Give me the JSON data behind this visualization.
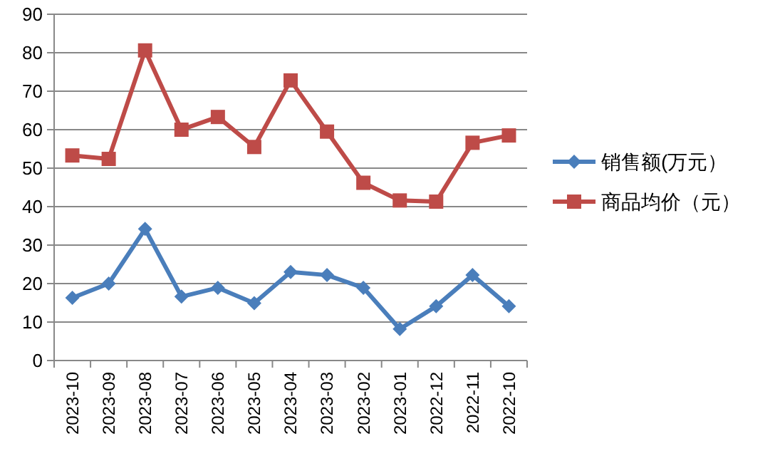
{
  "chart_data": {
    "type": "line",
    "categories": [
      "2023-10",
      "2023-09",
      "2023-08",
      "2023-07",
      "2023-06",
      "2023-05",
      "2023-04",
      "2023-03",
      "2023-02",
      "2023-01",
      "2022-12",
      "2022-11",
      "2022-10"
    ],
    "series": [
      {
        "name": "销售额(万元）",
        "color": "#4a7ebb",
        "marker": "diamond",
        "values": [
          16.3,
          20,
          34.2,
          16.6,
          18.9,
          14.9,
          23,
          22.2,
          18.9,
          8.2,
          14.1,
          22.2,
          14.1
        ]
      },
      {
        "name": "商品均价（元）",
        "color": "#be4b48",
        "marker": "square",
        "values": [
          53.3,
          52.4,
          80.6,
          60,
          63.3,
          55.5,
          72.8,
          59.5,
          46.2,
          41.6,
          41.3,
          56.6,
          58.5
        ]
      }
    ],
    "ylim": [
      0,
      90
    ],
    "yticks": [
      0,
      10,
      20,
      30,
      40,
      50,
      60,
      70,
      80,
      90
    ],
    "grid": "y",
    "legend": "right"
  }
}
